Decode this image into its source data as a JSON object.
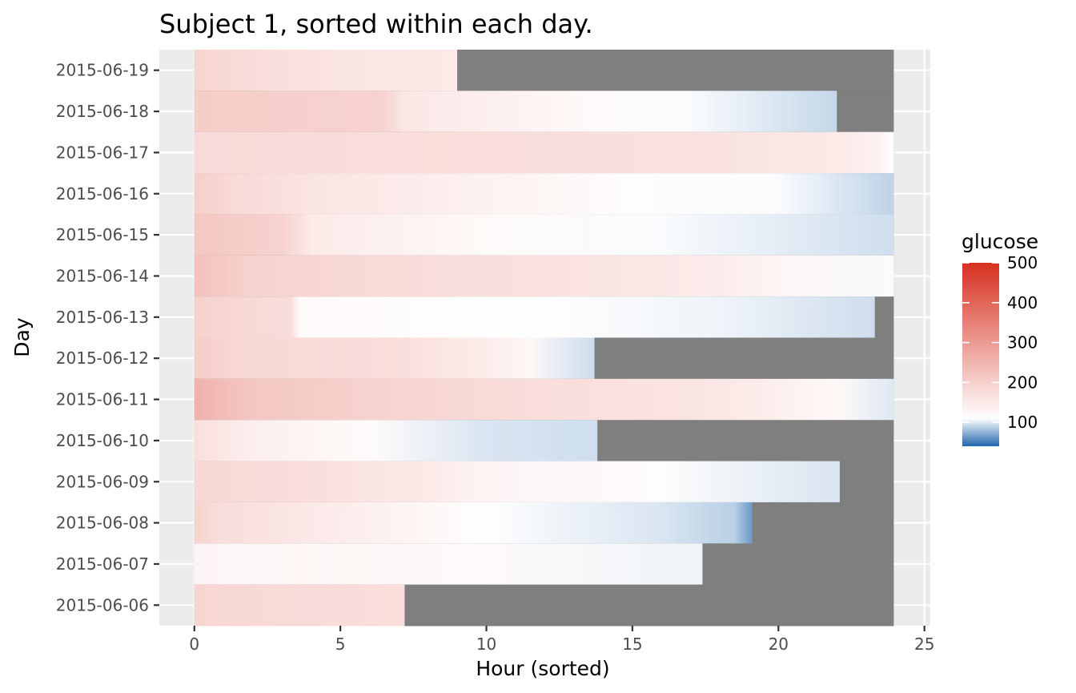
{
  "chart_data": {
    "type": "heatmap",
    "title": "Subject 1, sorted within each day.",
    "xlabel": "Hour (sorted)",
    "ylabel": "Day",
    "xlim": [
      -1.2,
      25.2
    ],
    "x_ticks": [
      0,
      5,
      10,
      15,
      20,
      25
    ],
    "x_tick_labels": [
      "0",
      "5",
      "10",
      "15",
      "20",
      "25"
    ],
    "grid": true,
    "legend": {
      "title": "glucose",
      "placement": "right",
      "limits": [
        40,
        500
      ],
      "tick_values": [
        100,
        200,
        300,
        400,
        500
      ],
      "tick_labels": [
        "100",
        "200",
        "300",
        "400",
        "500"
      ],
      "midpoint": 110,
      "low_color": "#2166AC",
      "mid_color": "#FFFFFF",
      "high_color": "#D7301F"
    },
    "background_missing_color": "#7F7F7F",
    "days": [
      {
        "label": "2015-06-19",
        "end_hour": 9.0,
        "stops": [
          [
            0,
            190
          ],
          [
            2.5,
            172
          ],
          [
            5,
            160
          ],
          [
            8.9,
            150
          ]
        ]
      },
      {
        "label": "2015-06-18",
        "end_hour": 22.0,
        "stops": [
          [
            0,
            205
          ],
          [
            6.5,
            192
          ],
          [
            7.2,
            155
          ],
          [
            10,
            140
          ],
          [
            14,
            118
          ],
          [
            17,
            108
          ],
          [
            21.9,
            92
          ]
        ]
      },
      {
        "label": "2015-06-17",
        "end_hour": 23.95,
        "stops": [
          [
            0,
            178
          ],
          [
            10,
            172
          ],
          [
            18,
            165
          ],
          [
            22,
            150
          ],
          [
            23.5,
            135
          ],
          [
            23.9,
            110
          ]
        ]
      },
      {
        "label": "2015-06-16",
        "end_hour": 23.95,
        "stops": [
          [
            0,
            200
          ],
          [
            1.5,
            180
          ],
          [
            4,
            160
          ],
          [
            10,
            135
          ],
          [
            15,
            115
          ],
          [
            20,
            108
          ],
          [
            23.9,
            90
          ]
        ]
      },
      {
        "label": "2015-06-15",
        "end_hour": 23.95,
        "stops": [
          [
            0,
            215
          ],
          [
            3,
            195
          ],
          [
            4,
            150
          ],
          [
            10,
            120
          ],
          [
            16,
            108
          ],
          [
            23.9,
            95
          ]
        ]
      },
      {
        "label": "2015-06-14",
        "end_hour": 23.95,
        "stops": [
          [
            0,
            225
          ],
          [
            2,
            195
          ],
          [
            8,
            175
          ],
          [
            14,
            160
          ],
          [
            18,
            145
          ],
          [
            20,
            128
          ],
          [
            23.9,
            108
          ]
        ]
      },
      {
        "label": "2015-06-13",
        "end_hour": 23.3,
        "stops": [
          [
            0,
            195
          ],
          [
            3.3,
            175
          ],
          [
            3.6,
            120
          ],
          [
            12,
            112
          ],
          [
            18,
            105
          ],
          [
            23.2,
            95
          ]
        ]
      },
      {
        "label": "2015-06-12",
        "end_hour": 13.7,
        "stops": [
          [
            0,
            205
          ],
          [
            1.5,
            185
          ],
          [
            7,
            172
          ],
          [
            9.5,
            150
          ],
          [
            11.5,
            125
          ],
          [
            13.6,
            95
          ]
        ]
      },
      {
        "label": "2015-06-11",
        "end_hour": 23.95,
        "stops": [
          [
            0,
            255
          ],
          [
            2,
            215
          ],
          [
            6,
            195
          ],
          [
            12,
            172
          ],
          [
            17,
            160
          ],
          [
            19,
            148
          ],
          [
            22,
            122
          ],
          [
            23.9,
            100
          ]
        ]
      },
      {
        "label": "2015-06-10",
        "end_hour": 13.8,
        "stops": [
          [
            0,
            170
          ],
          [
            2,
            140
          ],
          [
            6,
            118
          ],
          [
            10,
            98
          ],
          [
            13.7,
            95
          ]
        ]
      },
      {
        "label": "2015-06-09",
        "end_hour": 22.1,
        "stops": [
          [
            0,
            185
          ],
          [
            4,
            172
          ],
          [
            8,
            150
          ],
          [
            10,
            130
          ],
          [
            16,
            115
          ],
          [
            22,
            98
          ]
        ]
      },
      {
        "label": "2015-06-08",
        "end_hour": 19.1,
        "stops": [
          [
            0,
            195
          ],
          [
            0.8,
            175
          ],
          [
            5,
            145
          ],
          [
            10,
            112
          ],
          [
            16,
            98
          ],
          [
            18.5,
            88
          ],
          [
            19.05,
            65
          ]
        ]
      },
      {
        "label": "2015-06-07",
        "end_hour": 17.4,
        "stops": [
          [
            0,
            128
          ],
          [
            10,
            120
          ],
          [
            17.3,
            105
          ]
        ]
      },
      {
        "label": "2015-06-06",
        "end_hour": 7.2,
        "stops": [
          [
            0,
            188
          ],
          [
            3,
            180
          ],
          [
            7.1,
            172
          ]
        ]
      }
    ]
  }
}
